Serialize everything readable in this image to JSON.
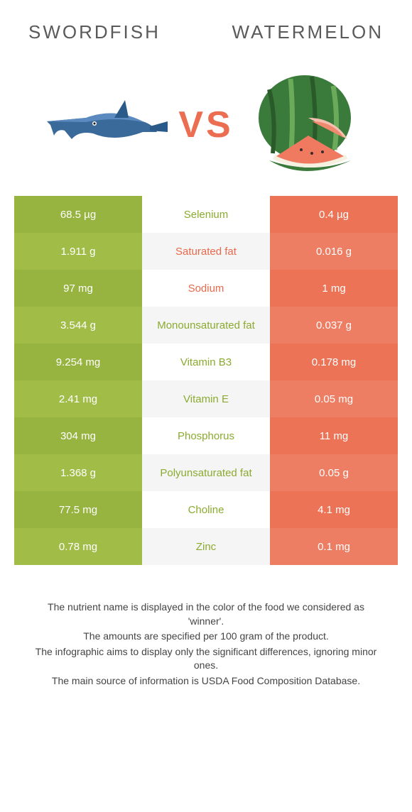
{
  "header": {
    "left_title": "Swordfish",
    "right_title": "Watermelon",
    "vs_label": "VS"
  },
  "colors": {
    "left_primary": "#96b43f",
    "left_alt": "#a1bd48",
    "right_primary": "#ec7356",
    "right_alt": "#ee7e63",
    "mid_alt": "#f5f5f5",
    "nutrient_left_text": "#8aab2f",
    "nutrient_right_text": "#e86a4c",
    "vs_text": "#ec6e52"
  },
  "rows": [
    {
      "left": "68.5 µg",
      "nutrient": "Selenium",
      "right": "0.4 µg",
      "winner": "left"
    },
    {
      "left": "1.911 g",
      "nutrient": "Saturated fat",
      "right": "0.016 g",
      "winner": "right"
    },
    {
      "left": "97 mg",
      "nutrient": "Sodium",
      "right": "1 mg",
      "winner": "right"
    },
    {
      "left": "3.544 g",
      "nutrient": "Monounsaturated fat",
      "right": "0.037 g",
      "winner": "left"
    },
    {
      "left": "9.254 mg",
      "nutrient": "Vitamin B3",
      "right": "0.178 mg",
      "winner": "left"
    },
    {
      "left": "2.41 mg",
      "nutrient": "Vitamin E",
      "right": "0.05 mg",
      "winner": "left"
    },
    {
      "left": "304 mg",
      "nutrient": "Phosphorus",
      "right": "11 mg",
      "winner": "left"
    },
    {
      "left": "1.368 g",
      "nutrient": "Polyunsaturated fat",
      "right": "0.05 g",
      "winner": "left"
    },
    {
      "left": "77.5 mg",
      "nutrient": "Choline",
      "right": "4.1 mg",
      "winner": "left"
    },
    {
      "left": "0.78 mg",
      "nutrient": "Zinc",
      "right": "0.1 mg",
      "winner": "left"
    }
  ],
  "footer": {
    "line1": "The nutrient name is displayed in the color of the food we considered as 'winner'.",
    "line2": "The amounts are specified per 100 gram of the product.",
    "line3": "The infographic aims to display only the significant differences, ignoring minor ones.",
    "line4": "The main source of information is USDA Food Composition Database."
  }
}
